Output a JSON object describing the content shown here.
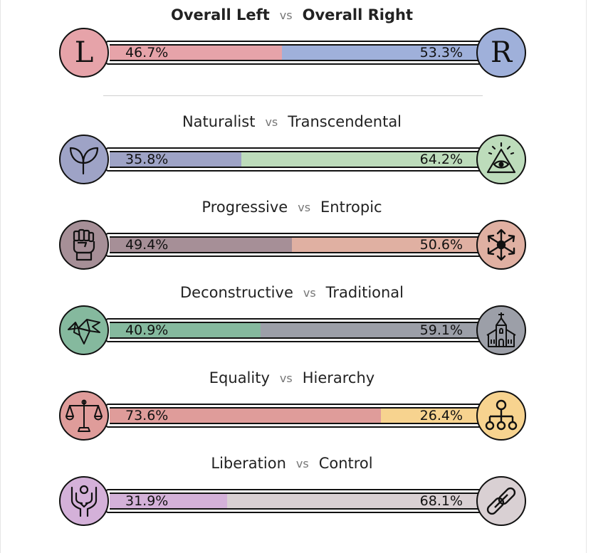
{
  "chart_data": {
    "type": "bar",
    "orientation": "horizontal-stacked",
    "overall": {
      "left_label": "Overall Left",
      "right_label": "Overall Right",
      "vs": "vs",
      "left_value": 46.7,
      "right_value": 53.3,
      "left_pct": "46.7%",
      "right_pct": "53.3%",
      "left_letter": "L",
      "right_letter": "R",
      "left_color": "#e6a3a9",
      "right_color": "#9fb0da"
    },
    "axes": [
      {
        "left_label": "Naturalist",
        "right_label": "Transcendental",
        "vs": "vs",
        "left_value": 35.8,
        "right_value": 64.2,
        "left_pct": "35.8%",
        "right_pct": "64.2%",
        "left_icon": "sprout-icon",
        "right_icon": "eye-pyramid-icon",
        "left_color": "#9ea3c6",
        "right_color": "#bddcbb"
      },
      {
        "left_label": "Progressive",
        "right_label": "Entropic",
        "vs": "vs",
        "left_value": 49.4,
        "right_value": 50.6,
        "left_pct": "49.4%",
        "right_pct": "50.6%",
        "left_icon": "raised-fist-icon",
        "right_icon": "scatter-arrows-icon",
        "left_color": "#a68f97",
        "right_color": "#e0b0a2"
      },
      {
        "left_label": "Deconstructive",
        "right_label": "Traditional",
        "vs": "vs",
        "left_value": 40.9,
        "right_value": 59.1,
        "left_pct": "40.9%",
        "right_pct": "59.1%",
        "left_icon": "paper-bird-icon",
        "right_icon": "church-icon",
        "left_color": "#85b99e",
        "right_color": "#9c9fa8"
      },
      {
        "left_label": "Equality",
        "right_label": "Hierarchy",
        "vs": "vs",
        "left_value": 73.6,
        "right_value": 26.4,
        "left_pct": "73.6%",
        "right_pct": "26.4%",
        "left_icon": "scales-icon",
        "right_icon": "hierarchy-tree-icon",
        "left_color": "#df9c9a",
        "right_color": "#f7d38f"
      },
      {
        "left_label": "Liberation",
        "right_label": "Control",
        "vs": "vs",
        "left_value": 31.9,
        "right_value": 68.1,
        "left_pct": "31.9%",
        "right_pct": "68.1%",
        "left_icon": "raised-arms-icon",
        "right_icon": "chain-link-icon",
        "left_color": "#d4b1d9",
        "right_color": "#d9d0d3"
      }
    ]
  }
}
